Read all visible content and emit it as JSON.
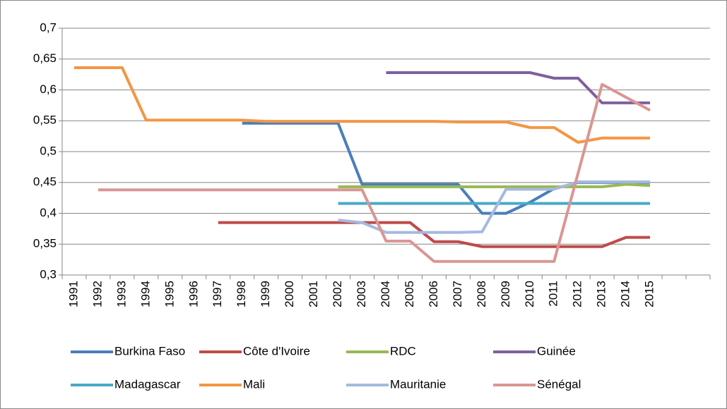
{
  "chart_data": {
    "type": "line",
    "categories": [
      "1991",
      "1992",
      "1993",
      "1994",
      "1995",
      "1996",
      "1997",
      "1998",
      "1999",
      "2000",
      "2001",
      "2002",
      "2003",
      "2004",
      "2005",
      "2006",
      "2007",
      "2008",
      "2009",
      "2010",
      "2011",
      "2012",
      "2013",
      "2014",
      "2015",
      null,
      null
    ],
    "ylim": [
      0.3,
      0.7
    ],
    "yticks": [
      {
        "value": 0.3,
        "label": "0,3"
      },
      {
        "value": 0.35,
        "label": "0,35"
      },
      {
        "value": 0.4,
        "label": "0,4"
      },
      {
        "value": 0.45,
        "label": "0,45"
      },
      {
        "value": 0.5,
        "label": "0,5"
      },
      {
        "value": 0.55,
        "label": "0,55"
      },
      {
        "value": 0.6,
        "label": "0,6"
      },
      {
        "value": 0.65,
        "label": "0,65"
      },
      {
        "value": 0.7,
        "label": "0,7"
      }
    ],
    "grid": true,
    "legend": "bottom",
    "series": [
      {
        "name": "Burkina Faso",
        "color": "#4a7ebb",
        "values": [
          null,
          null,
          null,
          null,
          null,
          null,
          null,
          0.546,
          0.546,
          0.546,
          0.546,
          0.546,
          0.447,
          0.447,
          0.447,
          0.447,
          0.447,
          0.4,
          0.4,
          0.418,
          0.44,
          0.45,
          0.45,
          0.45,
          0.45,
          null,
          null
        ]
      },
      {
        "name": "Côte d'Ivoire",
        "color": "#be4b48",
        "values": [
          null,
          null,
          null,
          null,
          null,
          null,
          0.385,
          0.385,
          0.385,
          0.385,
          0.385,
          0.385,
          0.385,
          0.385,
          0.385,
          0.354,
          0.354,
          0.346,
          0.346,
          0.346,
          0.346,
          0.346,
          0.346,
          0.361,
          0.361,
          null,
          null
        ]
      },
      {
        "name": "RDC",
        "color": "#98b954",
        "values": [
          null,
          null,
          null,
          null,
          null,
          null,
          null,
          null,
          null,
          null,
          null,
          0.443,
          0.443,
          0.443,
          0.443,
          0.443,
          0.443,
          0.443,
          0.443,
          0.443,
          0.443,
          0.443,
          0.443,
          0.447,
          0.445,
          null,
          null
        ]
      },
      {
        "name": "Guinée",
        "color": "#7d60a0",
        "values": [
          null,
          null,
          null,
          null,
          null,
          null,
          null,
          null,
          null,
          null,
          null,
          null,
          null,
          0.628,
          0.628,
          0.628,
          0.628,
          0.628,
          0.628,
          0.628,
          0.619,
          0.619,
          0.579,
          0.579,
          0.579,
          null,
          null
        ]
      },
      {
        "name": "Madagascar",
        "color": "#46aac5",
        "values": [
          null,
          null,
          null,
          null,
          null,
          null,
          null,
          null,
          null,
          null,
          null,
          0.416,
          0.416,
          0.416,
          0.416,
          0.416,
          0.416,
          0.416,
          0.416,
          0.416,
          0.416,
          0.416,
          0.416,
          0.416,
          0.416,
          null,
          null
        ]
      },
      {
        "name": "Mali",
        "color": "#f39644",
        "values": [
          0.636,
          0.636,
          0.636,
          0.551,
          0.551,
          0.551,
          0.551,
          0.551,
          0.549,
          0.549,
          0.549,
          0.549,
          0.549,
          0.549,
          0.549,
          0.549,
          0.548,
          0.548,
          0.548,
          0.539,
          0.539,
          0.515,
          0.522,
          0.522,
          0.522,
          null,
          null
        ]
      },
      {
        "name": "Mauritanie",
        "color": "#a5b9e0",
        "values": [
          null,
          null,
          null,
          null,
          null,
          null,
          null,
          null,
          null,
          null,
          null,
          0.389,
          0.385,
          0.369,
          0.369,
          0.369,
          0.369,
          0.37,
          0.439,
          0.439,
          0.439,
          0.451,
          0.451,
          0.451,
          0.451,
          null,
          null
        ]
      },
      {
        "name": "Sénégal",
        "color": "#d99694",
        "values": [
          null,
          0.438,
          0.438,
          0.438,
          0.438,
          0.438,
          0.438,
          0.438,
          0.438,
          0.438,
          0.438,
          0.438,
          0.438,
          0.355,
          0.355,
          0.322,
          0.322,
          0.322,
          0.322,
          0.322,
          0.322,
          0.465,
          0.609,
          0.588,
          0.567,
          null,
          null
        ]
      }
    ]
  }
}
